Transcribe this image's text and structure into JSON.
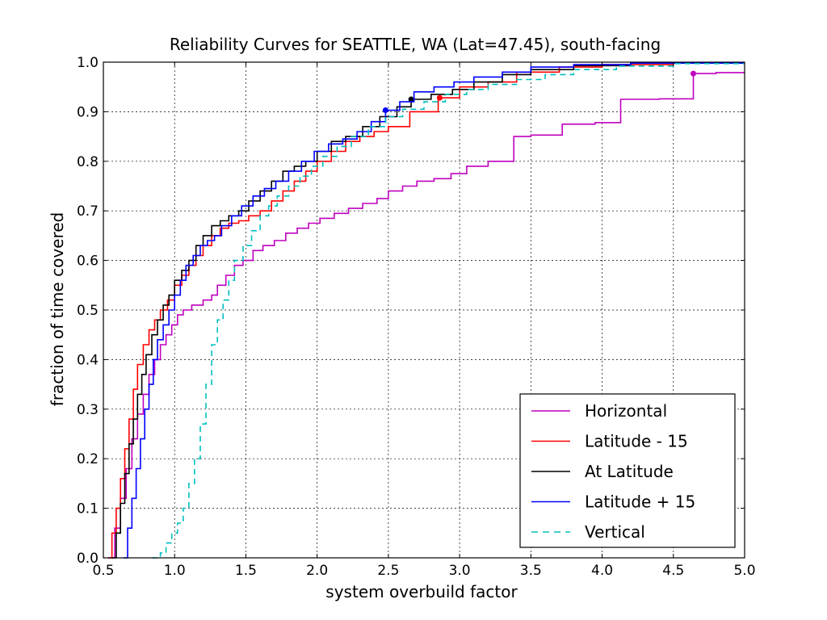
{
  "chart_data": {
    "type": "line",
    "title": "Reliability Curves for SEATTLE, WA (Lat=47.45), south-facing",
    "xlabel": "system overbuild factor",
    "ylabel": "fraction of time covered",
    "xlim": [
      0.5,
      5.0
    ],
    "ylim": [
      0.0,
      1.0
    ],
    "xticks": [
      "0.5",
      "1.0",
      "1.5",
      "2.0",
      "2.5",
      "3.0",
      "3.5",
      "4.0",
      "4.5",
      "5.0"
    ],
    "yticks": [
      "0.0",
      "0.1",
      "0.2",
      "0.3",
      "0.4",
      "0.5",
      "0.6",
      "0.7",
      "0.8",
      "0.9",
      "1.0"
    ],
    "grid": true,
    "legend_position": "lower-right",
    "series": [
      {
        "name": "Horizontal",
        "color": "#bf00bf",
        "dash": false,
        "x": [
          0.54,
          0.58,
          0.62,
          0.66,
          0.7,
          0.74,
          0.78,
          0.82,
          0.86,
          0.9,
          0.94,
          0.98,
          1.02,
          1.06,
          1.12,
          1.2,
          1.26,
          1.3,
          1.36,
          1.42,
          1.48,
          1.55,
          1.62,
          1.7,
          1.78,
          1.86,
          1.94,
          2.02,
          2.12,
          2.22,
          2.32,
          2.42,
          2.5,
          2.6,
          2.7,
          2.82,
          2.94,
          3.05,
          3.2,
          3.38,
          3.5,
          3.72,
          3.95,
          4.13,
          4.4,
          4.64,
          4.8,
          5.0
        ],
        "y": [
          0.0,
          0.06,
          0.12,
          0.18,
          0.24,
          0.29,
          0.33,
          0.37,
          0.4,
          0.43,
          0.45,
          0.47,
          0.49,
          0.5,
          0.51,
          0.52,
          0.53,
          0.55,
          0.57,
          0.59,
          0.6,
          0.62,
          0.63,
          0.64,
          0.655,
          0.665,
          0.675,
          0.685,
          0.695,
          0.705,
          0.715,
          0.725,
          0.74,
          0.75,
          0.76,
          0.765,
          0.775,
          0.79,
          0.8,
          0.85,
          0.853,
          0.875,
          0.878,
          0.925,
          0.926,
          0.977,
          0.979,
          0.98
        ],
        "marker": [
          4.64,
          0.977
        ]
      },
      {
        "name": "Latitude - 15",
        "color": "#ff0000",
        "dash": false,
        "x": [
          0.53,
          0.56,
          0.59,
          0.62,
          0.65,
          0.68,
          0.71,
          0.74,
          0.78,
          0.82,
          0.86,
          0.9,
          0.95,
          1.0,
          1.05,
          1.1,
          1.15,
          1.2,
          1.26,
          1.32,
          1.38,
          1.45,
          1.52,
          1.6,
          1.68,
          1.76,
          1.84,
          1.92,
          2.0,
          2.1,
          2.2,
          2.3,
          2.4,
          2.5,
          2.65,
          2.85,
          3.0,
          3.2,
          3.4,
          3.7,
          4.0,
          4.5,
          5.0
        ],
        "y": [
          0.0,
          0.05,
          0.1,
          0.16,
          0.22,
          0.28,
          0.34,
          0.39,
          0.43,
          0.46,
          0.48,
          0.5,
          0.52,
          0.55,
          0.57,
          0.59,
          0.61,
          0.63,
          0.65,
          0.665,
          0.675,
          0.68,
          0.69,
          0.7,
          0.72,
          0.74,
          0.76,
          0.78,
          0.8,
          0.82,
          0.84,
          0.85,
          0.86,
          0.87,
          0.9,
          0.928,
          0.95,
          0.96,
          0.98,
          0.99,
          0.995,
          0.998,
          1.0
        ],
        "marker": [
          2.86,
          0.928
        ]
      },
      {
        "name": "At Latitude",
        "color": "#000000",
        "dash": false,
        "x": [
          0.56,
          0.59,
          0.62,
          0.65,
          0.68,
          0.71,
          0.74,
          0.77,
          0.8,
          0.84,
          0.88,
          0.92,
          0.96,
          1.0,
          1.05,
          1.1,
          1.15,
          1.2,
          1.26,
          1.32,
          1.38,
          1.45,
          1.52,
          1.6,
          1.68,
          1.76,
          1.84,
          1.92,
          2.0,
          2.1,
          2.2,
          2.32,
          2.44,
          2.56,
          2.66,
          2.8,
          2.95,
          3.1,
          3.3,
          3.5,
          3.8,
          4.2,
          5.0
        ],
        "y": [
          0.0,
          0.05,
          0.11,
          0.17,
          0.23,
          0.28,
          0.33,
          0.37,
          0.41,
          0.45,
          0.48,
          0.51,
          0.53,
          0.56,
          0.58,
          0.6,
          0.63,
          0.65,
          0.67,
          0.68,
          0.69,
          0.7,
          0.72,
          0.74,
          0.76,
          0.78,
          0.79,
          0.8,
          0.82,
          0.84,
          0.85,
          0.87,
          0.89,
          0.91,
          0.925,
          0.935,
          0.945,
          0.96,
          0.975,
          0.985,
          0.993,
          0.998,
          1.0
        ],
        "marker": [
          2.66,
          0.925
        ]
      },
      {
        "name": "Latitude + 15",
        "color": "#0000ff",
        "dash": false,
        "x": [
          0.64,
          0.67,
          0.7,
          0.73,
          0.76,
          0.79,
          0.82,
          0.85,
          0.88,
          0.92,
          0.96,
          1.0,
          1.04,
          1.08,
          1.13,
          1.18,
          1.23,
          1.28,
          1.33,
          1.4,
          1.47,
          1.55,
          1.63,
          1.71,
          1.8,
          1.89,
          1.98,
          2.08,
          2.18,
          2.28,
          2.38,
          2.48,
          2.58,
          2.68,
          2.82,
          2.96,
          3.1,
          3.3,
          3.5,
          3.8,
          4.2,
          5.0
        ],
        "y": [
          0.0,
          0.06,
          0.12,
          0.18,
          0.24,
          0.3,
          0.35,
          0.4,
          0.44,
          0.47,
          0.5,
          0.53,
          0.56,
          0.59,
          0.61,
          0.63,
          0.64,
          0.65,
          0.67,
          0.69,
          0.71,
          0.73,
          0.745,
          0.76,
          0.78,
          0.8,
          0.82,
          0.835,
          0.845,
          0.86,
          0.88,
          0.903,
          0.92,
          0.94,
          0.95,
          0.96,
          0.97,
          0.98,
          0.99,
          0.995,
          0.998,
          1.0
        ],
        "marker": [
          2.48,
          0.903
        ]
      },
      {
        "name": "Vertical",
        "color": "#00bfbf",
        "dash": true,
        "x": [
          0.84,
          0.9,
          0.94,
          0.98,
          1.02,
          1.06,
          1.1,
          1.14,
          1.18,
          1.22,
          1.26,
          1.3,
          1.34,
          1.38,
          1.42,
          1.48,
          1.54,
          1.6,
          1.66,
          1.72,
          1.8,
          1.88,
          1.96,
          2.04,
          2.14,
          2.24,
          2.36,
          2.48,
          2.6,
          2.75,
          2.9,
          3.05,
          3.2,
          3.4,
          3.6,
          3.8,
          4.1,
          4.5,
          5.0
        ],
        "y": [
          0.0,
          0.01,
          0.03,
          0.05,
          0.07,
          0.1,
          0.15,
          0.2,
          0.27,
          0.35,
          0.43,
          0.48,
          0.52,
          0.56,
          0.6,
          0.63,
          0.66,
          0.69,
          0.71,
          0.73,
          0.75,
          0.77,
          0.79,
          0.81,
          0.83,
          0.85,
          0.87,
          0.89,
          0.905,
          0.92,
          0.935,
          0.945,
          0.955,
          0.965,
          0.975,
          0.985,
          0.992,
          0.997,
          1.0
        ],
        "marker": null
      }
    ]
  }
}
